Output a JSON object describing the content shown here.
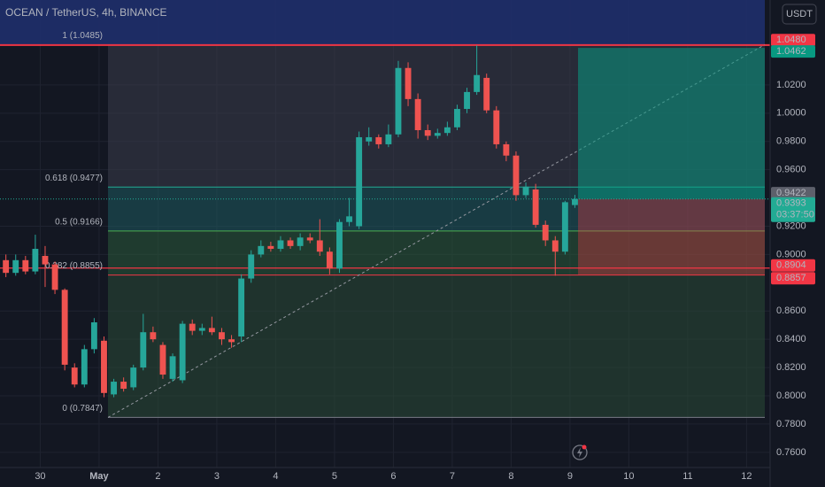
{
  "chart_data": {
    "type": "candlestick",
    "title": "OCEAN / TetherUS, 4h, BINANCE",
    "currency": "USDT",
    "up_color": "#26a69a",
    "down_color": "#ef5350",
    "xlim": [
      -10.1,
      68.4
    ],
    "ylim": [
      0.748,
      1.0801
    ],
    "xticks": [
      {
        "value": -6,
        "label": "30"
      },
      {
        "value": 0,
        "label": "May"
      },
      {
        "value": 6,
        "label": "2"
      },
      {
        "value": 12,
        "label": "3"
      },
      {
        "value": 18,
        "label": "4"
      },
      {
        "value": 24,
        "label": "5"
      },
      {
        "value": 30,
        "label": "6"
      },
      {
        "value": 36,
        "label": "7"
      },
      {
        "value": 42,
        "label": "8"
      },
      {
        "value": 48,
        "label": "9"
      },
      {
        "value": 54,
        "label": "10"
      },
      {
        "value": 60,
        "label": "11"
      },
      {
        "value": 66,
        "label": "12"
      }
    ],
    "yticks": [
      {
        "value": 1.02,
        "label": "1.0200"
      },
      {
        "value": 1.0,
        "label": "1.0000"
      },
      {
        "value": 0.98,
        "label": "0.9800"
      },
      {
        "value": 0.96,
        "label": "0.9600"
      },
      {
        "value": 0.92,
        "label": "0.9200"
      },
      {
        "value": 0.9,
        "label": "0.9000"
      },
      {
        "value": 0.86,
        "label": "0.8600"
      },
      {
        "value": 0.84,
        "label": "0.8400"
      },
      {
        "value": 0.82,
        "label": "0.8200"
      },
      {
        "value": 0.8,
        "label": "0.8000"
      },
      {
        "value": 0.78,
        "label": "0.7800"
      },
      {
        "value": 0.76,
        "label": "0.7600"
      }
    ],
    "x": [
      -9.5,
      -8.5,
      -7.5,
      -6.5,
      -5.5,
      -4.5,
      -3.5,
      -2.5,
      -1.5,
      -0.5,
      0.5,
      1.5,
      2.5,
      3.5,
      4.5,
      5.5,
      6.5,
      7.5,
      8.5,
      9.5,
      10.5,
      11.5,
      12.5,
      13.5,
      14.5,
      15.5,
      16.5,
      17.5,
      18.5,
      19.5,
      20.5,
      21.5,
      22.5,
      23.5,
      24.5,
      25.5,
      26.5,
      27.5,
      28.5,
      29.5,
      30.5,
      31.5,
      32.5,
      33.5,
      34.5,
      35.5,
      36.5,
      37.5,
      38.5,
      39.5,
      40.5,
      41.5,
      42.5,
      43.5,
      44.5,
      45.5,
      46.5,
      47.5,
      48.5
    ],
    "open": [
      0.896,
      0.887,
      0.896,
      0.888,
      0.899,
      0.893,
      0.875,
      0.82,
      0.808,
      0.833,
      0.839,
      0.801,
      0.81,
      0.806,
      0.82,
      0.845,
      0.836,
      0.812,
      0.811,
      0.851,
      0.846,
      0.848,
      0.845,
      0.84,
      0.842,
      0.883,
      0.9,
      0.906,
      0.904,
      0.91,
      0.906,
      0.912,
      0.91,
      0.902,
      0.89,
      0.923,
      0.92,
      0.98,
      0.983,
      0.978,
      0.985,
      1.032,
      1.01,
      0.988,
      0.984,
      0.986,
      0.99,
      1.003,
      1.015,
      1.025,
      1.002,
      0.978,
      0.97,
      0.942,
      0.946,
      0.921,
      0.91,
      0.902,
      0.935
    ],
    "close": [
      0.887,
      0.896,
      0.888,
      0.904,
      0.893,
      0.875,
      0.822,
      0.808,
      0.833,
      0.852,
      0.802,
      0.81,
      0.805,
      0.82,
      0.845,
      0.84,
      0.815,
      0.828,
      0.851,
      0.846,
      0.848,
      0.845,
      0.84,
      0.838,
      0.883,
      0.9,
      0.906,
      0.904,
      0.91,
      0.906,
      0.912,
      0.91,
      0.902,
      0.89,
      0.923,
      0.927,
      0.983,
      0.983,
      0.978,
      0.985,
      1.032,
      1.01,
      0.988,
      0.984,
      0.986,
      0.99,
      1.003,
      1.015,
      1.027,
      1.002,
      0.978,
      0.97,
      0.942,
      0.948,
      0.921,
      0.91,
      0.902,
      0.937,
      0.9393
    ],
    "high": [
      0.9,
      0.9,
      0.899,
      0.914,
      0.906,
      0.895,
      0.876,
      0.823,
      0.836,
      0.855,
      0.842,
      0.812,
      0.813,
      0.822,
      0.858,
      0.849,
      0.838,
      0.83,
      0.853,
      0.854,
      0.851,
      0.856,
      0.848,
      0.843,
      0.886,
      0.903,
      0.91,
      0.909,
      0.913,
      0.912,
      0.915,
      0.915,
      0.925,
      0.905,
      0.925,
      0.94,
      0.987,
      0.99,
      0.985,
      0.992,
      1.037,
      1.036,
      1.014,
      0.992,
      0.989,
      0.994,
      1.006,
      1.018,
      1.048,
      1.028,
      1.005,
      0.98,
      0.973,
      0.951,
      0.95,
      0.924,
      0.913,
      0.938,
      0.9422
    ],
    "low": [
      0.884,
      0.885,
      0.886,
      0.886,
      0.877,
      0.872,
      0.818,
      0.806,
      0.806,
      0.83,
      0.799,
      0.799,
      0.803,
      0.804,
      0.818,
      0.838,
      0.812,
      0.81,
      0.809,
      0.843,
      0.843,
      0.843,
      0.836,
      0.834,
      0.838,
      0.88,
      0.898,
      0.902,
      0.902,
      0.904,
      0.903,
      0.908,
      0.899,
      0.886,
      0.887,
      0.92,
      0.918,
      0.977,
      0.975,
      0.976,
      0.983,
      1.005,
      0.982,
      0.981,
      0.982,
      0.984,
      0.988,
      1.0,
      1.013,
      1.0,
      0.975,
      0.966,
      0.938,
      0.94,
      0.919,
      0.906,
      0.885,
      0.9,
      0.933
    ],
    "fib_levels": [
      {
        "label": "1 (1.0485)",
        "value": 1.0485
      },
      {
        "label": "0.618 (0.9477)",
        "value": 0.9477
      },
      {
        "label": "0.5 (0.9166)",
        "value": 0.9166
      },
      {
        "label": "0.382 (0.8855)",
        "value": 0.8855
      },
      {
        "label": "0 (0.7847)",
        "value": 0.7847
      }
    ],
    "position": {
      "target": 1.0462,
      "entry": 0.9393,
      "stop": 0.8857
    },
    "price_labels": [
      {
        "value": 1.048,
        "label": "1.0480",
        "color": "#f23645"
      },
      {
        "value": 1.0462,
        "label": "1.0462",
        "color": "#089981"
      },
      {
        "value": 0.9422,
        "label": "0.9422",
        "color": "#5d606b"
      },
      {
        "value": 0.9393,
        "label": "0.9393",
        "color": "#22ab94"
      },
      {
        "value": 0.8904,
        "label": "0.8904",
        "color": "#f23645"
      },
      {
        "value": 0.8857,
        "label": "0.8857",
        "color": "#f23645"
      }
    ],
    "countdown": "03:37:50"
  }
}
